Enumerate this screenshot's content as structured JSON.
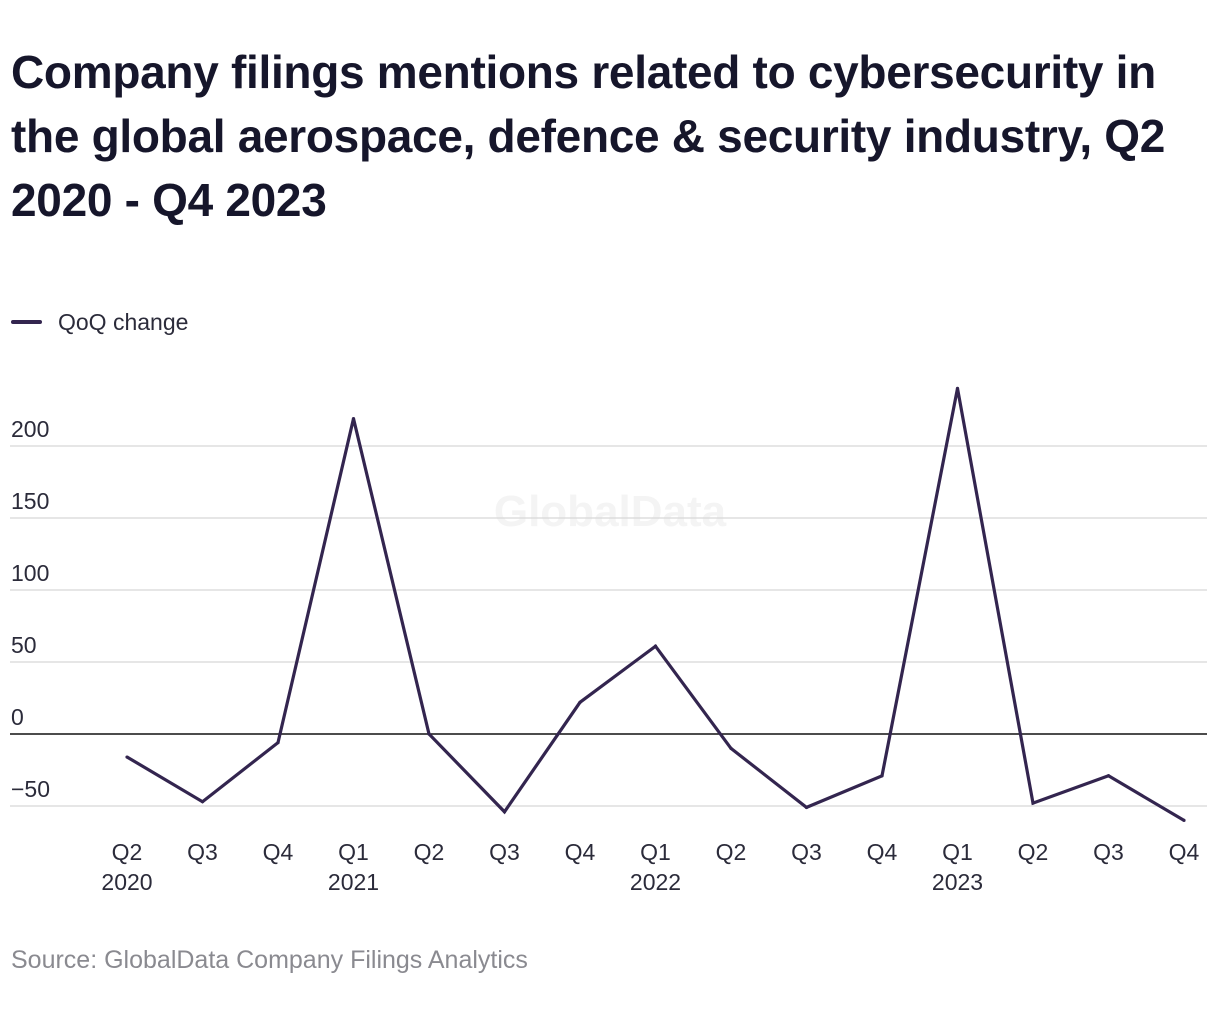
{
  "header": {
    "title": "Company filings mentions related to cybersecurity in the global aerospace, defence & security industry, Q2 2020 - Q4 2023"
  },
  "watermark": "GlobalData",
  "footer": {
    "source": "Source: GlobalData Company Filings Analytics"
  },
  "colors": {
    "series": "#33254f",
    "grid": "#d6d6d6",
    "zero_line": "#111111",
    "text": "#2b2b3a"
  },
  "chart_data": {
    "type": "line",
    "title": "Company filings mentions related to cybersecurity in the global aerospace, defence & security industry, Q2 2020 - Q4 2023",
    "xlabel": "",
    "ylabel": "",
    "categories": [
      "Q2",
      "Q3",
      "Q4",
      "Q1",
      "Q2",
      "Q3",
      "Q4",
      "Q1",
      "Q2",
      "Q3",
      "Q4",
      "Q1",
      "Q2",
      "Q3",
      "Q4"
    ],
    "year_labels": [
      "2020",
      "",
      "",
      "2021",
      "",
      "",
      "",
      "2022",
      "",
      "",
      "",
      "2023",
      "",
      "",
      ""
    ],
    "series": [
      {
        "name": "QoQ change",
        "values": [
          -16,
          -47,
          -6,
          219,
          0,
          -54,
          22,
          61,
          -10,
          -51,
          -29,
          240,
          -48,
          -29,
          -60
        ]
      }
    ],
    "yticks": [
      -50,
      0,
      50,
      100,
      150,
      200
    ],
    "ytick_labels": [
      "−50",
      "0",
      "50",
      "100",
      "150",
      "200"
    ],
    "ylim": [
      -50,
      200
    ],
    "grid": true,
    "legend_position": "top-left"
  }
}
